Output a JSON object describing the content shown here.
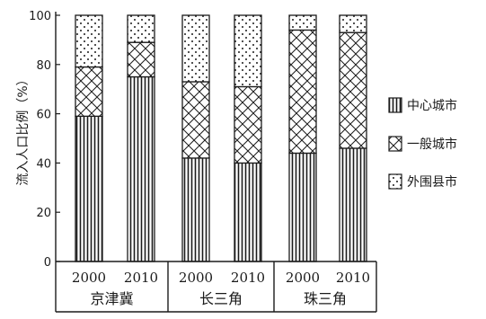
{
  "chart_data": {
    "type": "bar",
    "stacked": true,
    "ylabel": "流入人口比例（%）",
    "ylim": [
      0,
      100
    ],
    "yticks": [
      0,
      20,
      40,
      60,
      80,
      100
    ],
    "groups": [
      {
        "name": "京津冀",
        "categories": [
          "2000",
          "2010"
        ]
      },
      {
        "name": "长三角",
        "categories": [
          "2000",
          "2010"
        ]
      },
      {
        "name": "珠三角",
        "categories": [
          "2000",
          "2010"
        ]
      }
    ],
    "series": [
      {
        "name": "中心城市",
        "pattern": "vertical-lines",
        "values": [
          59,
          75,
          42,
          40,
          44,
          46
        ]
      },
      {
        "name": "一般城市",
        "pattern": "crosshatch",
        "values": [
          20,
          14,
          31,
          31,
          50,
          47
        ]
      },
      {
        "name": "外围县市",
        "pattern": "dots",
        "values": [
          21,
          11,
          27,
          29,
          6,
          7
        ]
      }
    ],
    "legend_position": "right",
    "grid": false
  },
  "colors": {
    "ink": "#1b1b1b",
    "background": "#ffffff"
  }
}
